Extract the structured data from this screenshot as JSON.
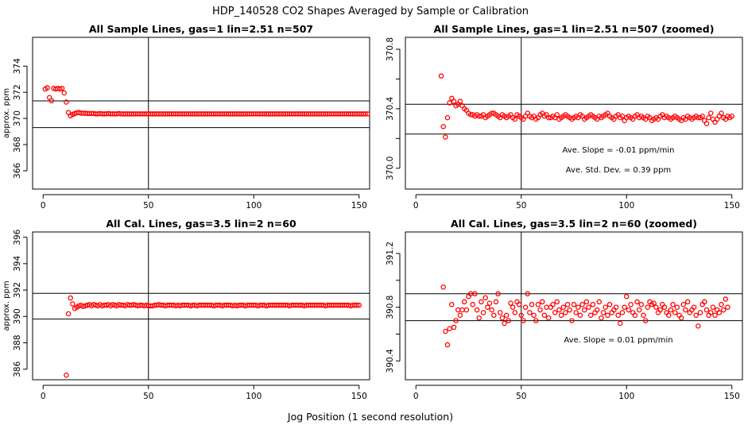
{
  "title": "HDP_140528  CO2 Shapes Averaged by Sample or Calibration",
  "xlabel": "Jog Position (1 second resolution)",
  "chart_data": [
    {
      "type": "scatter",
      "title": "All Sample Lines, gas=1 lin=2.51 n=507",
      "ylabel": "approx. ppm",
      "xlim": [
        -5,
        155
      ],
      "ylim": [
        364.6,
        376.2
      ],
      "xticks": [
        0,
        50,
        100,
        150
      ],
      "yticks": [
        366,
        368,
        370,
        372,
        374
      ],
      "vline": 50,
      "hlines": [
        369.3,
        371.34
      ],
      "annotations": [],
      "x_start": 1,
      "y": [
        372.25,
        372.35,
        371.6,
        371.35,
        372.3,
        372.25,
        372.3,
        372.25,
        372.3,
        371.95,
        371.25,
        370.45,
        370.2,
        370.3,
        370.38,
        370.43,
        370.45,
        370.4,
        370.4,
        370.4,
        370.38,
        370.38,
        370.38,
        370.38,
        370.35,
        370.35,
        370.38,
        370.35,
        370.35,
        370.35,
        370.38,
        370.35,
        370.35,
        370.35,
        370.35,
        370.38,
        370.35,
        370.35,
        370.35,
        370.35,
        370.35,
        370.35,
        370.35,
        370.35,
        370.35,
        370.35,
        370.35,
        370.35,
        370.35,
        370.35,
        370.35,
        370.35,
        370.35,
        370.35,
        370.35,
        370.35,
        370.35,
        370.35,
        370.35,
        370.35,
        370.35,
        370.35,
        370.35,
        370.35,
        370.35,
        370.35,
        370.35,
        370.35,
        370.35,
        370.35,
        370.35,
        370.35,
        370.35,
        370.35,
        370.35,
        370.35,
        370.35,
        370.35,
        370.35,
        370.35,
        370.35,
        370.35,
        370.35,
        370.35,
        370.35,
        370.35,
        370.35,
        370.35,
        370.35,
        370.35,
        370.35,
        370.35,
        370.35,
        370.35,
        370.35,
        370.35,
        370.35,
        370.35,
        370.35,
        370.35,
        370.35,
        370.35,
        370.35,
        370.35,
        370.35,
        370.35,
        370.35,
        370.35,
        370.35,
        370.35,
        370.35,
        370.35,
        370.35,
        370.35,
        370.35,
        370.35,
        370.35,
        370.35,
        370.35,
        370.35,
        370.35,
        370.35,
        370.35,
        370.35,
        370.35,
        370.35,
        370.35,
        370.35,
        370.35,
        370.35,
        370.35,
        370.35,
        370.35,
        370.35,
        370.35,
        370.35,
        370.35,
        370.35,
        370.35,
        370.35,
        370.35,
        370.35,
        370.35,
        370.35,
        370.35,
        370.35,
        370.35,
        370.35,
        370.35,
        370.35,
        370.35,
        370.35,
        370.35,
        370.35
      ]
    },
    {
      "type": "scatter",
      "title": "All Sample Lines, gas=1 lin=2.51 n=507 (zoomed)",
      "ylabel": "",
      "xlim": [
        -5,
        155
      ],
      "ylim": [
        369.86,
        370.88
      ],
      "xticks": [
        0,
        50,
        100,
        150
      ],
      "yticks": [
        370.0,
        370.2,
        370.4,
        370.6,
        370.8
      ],
      "ytick_labels": [
        "370.0",
        "",
        "370.4",
        "",
        "370.8"
      ],
      "vline": 50,
      "hlines": [
        370.23,
        370.43
      ],
      "annotations": [
        "Ave. Slope =  -0.01  ppm/min",
        "Ave. Std. Dev. =  0.39  ppm"
      ],
      "x_start": 12,
      "y": [
        370.62,
        370.28,
        370.21,
        370.34,
        370.44,
        370.47,
        370.45,
        370.42,
        370.43,
        370.45,
        370.42,
        370.4,
        370.39,
        370.37,
        370.36,
        370.36,
        370.35,
        370.36,
        370.35,
        370.35,
        370.36,
        370.34,
        370.35,
        370.36,
        370.37,
        370.37,
        370.36,
        370.35,
        370.34,
        370.36,
        370.35,
        370.34,
        370.35,
        370.36,
        370.34,
        370.33,
        370.36,
        370.35,
        370.34,
        370.33,
        370.35,
        370.37,
        370.35,
        370.34,
        370.35,
        370.33,
        370.34,
        370.36,
        370.37,
        370.35,
        370.36,
        370.34,
        370.34,
        370.35,
        370.34,
        370.36,
        370.33,
        370.34,
        370.35,
        370.36,
        370.35,
        370.34,
        370.33,
        370.34,
        370.35,
        370.34,
        370.36,
        370.35,
        370.33,
        370.34,
        370.35,
        370.36,
        370.35,
        370.34,
        370.33,
        370.35,
        370.34,
        370.35,
        370.36,
        370.37,
        370.35,
        370.34,
        370.33,
        370.35,
        370.36,
        370.34,
        370.35,
        370.32,
        370.34,
        370.35,
        370.34,
        370.33,
        370.35,
        370.36,
        370.34,
        370.35,
        370.34,
        370.33,
        370.35,
        370.34,
        370.32,
        370.33,
        370.34,
        370.33,
        370.35,
        370.36,
        370.34,
        370.35,
        370.34,
        370.33,
        370.34,
        370.35,
        370.34,
        370.33,
        370.32,
        370.34,
        370.33,
        370.35,
        370.34,
        370.33,
        370.34,
        370.35,
        370.34,
        370.34,
        370.35,
        370.32,
        370.3,
        370.34,
        370.37,
        370.33,
        370.31,
        370.33,
        370.35,
        370.37,
        370.34,
        370.33,
        370.35,
        370.34,
        370.35
      ]
    },
    {
      "type": "scatter",
      "title": "All Cal. Lines, gas=3.5 lin=2 n=60",
      "ylabel": "approx. ppm",
      "xlim": [
        -5,
        155
      ],
      "ylim": [
        385.2,
        396.4
      ],
      "xticks": [
        0,
        50,
        100,
        150
      ],
      "yticks": [
        386,
        388,
        390,
        392,
        394,
        396
      ],
      "vline": 50,
      "hlines": [
        389.8,
        391.75
      ],
      "annotations": [],
      "x_start": 11,
      "y": [
        385.55,
        390.2,
        391.4,
        390.95,
        390.6,
        390.7,
        390.8,
        390.85,
        390.75,
        390.8,
        390.85,
        390.9,
        390.8,
        390.9,
        390.85,
        390.8,
        390.9,
        390.8,
        390.85,
        390.85,
        390.9,
        390.8,
        390.9,
        390.85,
        390.8,
        390.9,
        390.85,
        390.85,
        390.8,
        390.9,
        390.85,
        390.85,
        390.9,
        390.85,
        390.8,
        390.85,
        390.85,
        390.8,
        390.85,
        390.8,
        390.8,
        390.8,
        390.85,
        390.85,
        390.9,
        390.85,
        390.85,
        390.8,
        390.85,
        390.85,
        390.85,
        390.85,
        390.8,
        390.85,
        390.8,
        390.85,
        390.85,
        390.85,
        390.85,
        390.8,
        390.85,
        390.85,
        390.8,
        390.85,
        390.85,
        390.85,
        390.85,
        390.85,
        390.85,
        390.85,
        390.8,
        390.85,
        390.85,
        390.85,
        390.8,
        390.85,
        390.85,
        390.85,
        390.85,
        390.8,
        390.85,
        390.8,
        390.85,
        390.85,
        390.85,
        390.8,
        390.85,
        390.85,
        390.85,
        390.85,
        390.85,
        390.8,
        390.85,
        390.85,
        390.85,
        390.8,
        390.85,
        390.85,
        390.85,
        390.85,
        390.85,
        390.85,
        390.85,
        390.85,
        390.85,
        390.85,
        390.8,
        390.85,
        390.85,
        390.85,
        390.85,
        390.85,
        390.85,
        390.8,
        390.85,
        390.85,
        390.85,
        390.85,
        390.85,
        390.85,
        390.85,
        390.85,
        390.85,
        390.8,
        390.85,
        390.85,
        390.85,
        390.85,
        390.85,
        390.85,
        390.85,
        390.85,
        390.85,
        390.85,
        390.85,
        390.8,
        390.85,
        390.85,
        390.85,
        390.85
      ]
    },
    {
      "type": "scatter",
      "title": "All Cal. Lines, gas=3.5 lin=2 n=60 (zoomed)",
      "ylabel": "",
      "xlim": [
        -5,
        155
      ],
      "ylim": [
        390.26,
        391.36
      ],
      "xticks": [
        0,
        50,
        100,
        150
      ],
      "yticks": [
        390.4,
        390.6,
        390.8,
        391.0,
        391.2
      ],
      "ytick_labels": [
        "390.4",
        "",
        "390.8",
        "",
        "391.2"
      ],
      "vline": 50,
      "hlines": [
        390.7,
        390.9
      ],
      "annotations": [
        "Ave. Slope =  0.01  ppm/min"
      ],
      "x_start": 13,
      "y": [
        390.95,
        390.62,
        390.52,
        390.64,
        390.82,
        390.65,
        390.7,
        390.78,
        390.74,
        390.78,
        390.84,
        390.78,
        390.88,
        390.9,
        390.82,
        390.9,
        390.78,
        390.72,
        390.84,
        390.76,
        390.87,
        390.8,
        390.83,
        390.78,
        390.74,
        390.84,
        390.9,
        390.76,
        390.72,
        390.68,
        390.74,
        390.7,
        390.83,
        390.8,
        390.76,
        390.84,
        390.82,
        390.74,
        390.7,
        390.8,
        390.9,
        390.76,
        390.82,
        390.74,
        390.7,
        390.82,
        390.78,
        390.84,
        390.74,
        390.8,
        390.72,
        390.8,
        390.82,
        390.76,
        390.84,
        390.78,
        390.74,
        390.8,
        390.76,
        390.82,
        390.78,
        390.7,
        390.82,
        390.76,
        390.8,
        390.74,
        390.82,
        390.78,
        390.84,
        390.8,
        390.74,
        390.82,
        390.76,
        390.78,
        390.84,
        390.72,
        390.76,
        390.8,
        390.74,
        390.82,
        390.76,
        390.78,
        390.8,
        390.74,
        390.68,
        390.76,
        390.8,
        390.88,
        390.78,
        390.82,
        390.76,
        390.74,
        390.84,
        390.78,
        390.82,
        390.74,
        390.7,
        390.8,
        390.84,
        390.82,
        390.83,
        390.8,
        390.76,
        390.78,
        390.82,
        390.8,
        390.76,
        390.74,
        390.78,
        390.82,
        390.76,
        390.8,
        390.74,
        390.72,
        390.82,
        390.78,
        390.84,
        390.76,
        390.78,
        390.8,
        390.74,
        390.66,
        390.76,
        390.82,
        390.84,
        390.78,
        390.74,
        390.76,
        390.8,
        390.74,
        390.78,
        390.76,
        390.82,
        390.78,
        390.86,
        390.8
      ]
    }
  ]
}
